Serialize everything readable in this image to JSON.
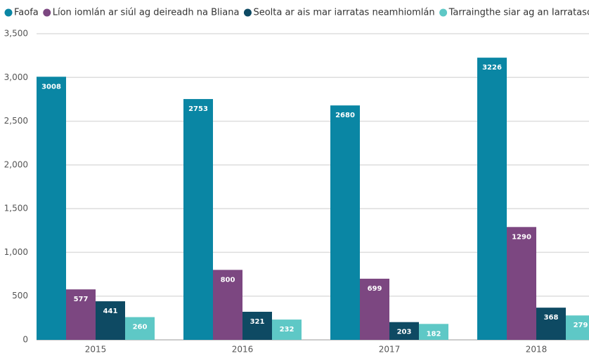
{
  "chart_data": {
    "type": "bar",
    "categories": [
      "2015",
      "2016",
      "2017",
      "2018"
    ],
    "series": [
      {
        "name": "Faofa",
        "color": "#0a86a4",
        "values": [
          3008,
          2753,
          2680,
          3226
        ]
      },
      {
        "name": "Líon iomlán ar siúl ag deireadh na Bliana",
        "color": "#7c4781",
        "values": [
          577,
          800,
          699,
          1290
        ]
      },
      {
        "name": "Seolta ar ais mar iarratas neamhiomlán",
        "color": "#0e4a63",
        "values": [
          441,
          321,
          203,
          368
        ]
      },
      {
        "name": "Tarraingthe siar ag an Iarratasóir",
        "color": "#5ec8c6",
        "values": [
          260,
          232,
          182,
          279
        ]
      }
    ],
    "ylim": [
      0,
      3500
    ],
    "yticks": [
      0,
      500,
      {
        "value": 1000,
        "label": "1,000"
      },
      {
        "value": 1500,
        "label": "1,500"
      },
      {
        "value": 2000,
        "label": "2,000"
      },
      {
        "value": 2500,
        "label": "2,500"
      },
      {
        "value": 3000,
        "label": "3,000"
      },
      {
        "value": 3500,
        "label": "3,500"
      }
    ],
    "grid": true,
    "legend": "top"
  }
}
